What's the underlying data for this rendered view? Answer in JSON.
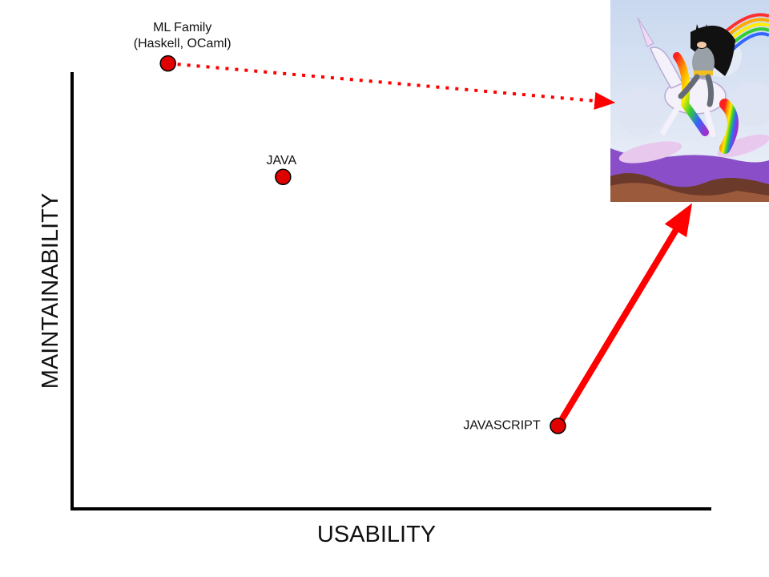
{
  "chart_data": {
    "type": "scatter",
    "title": "",
    "xlabel": "USABILITY",
    "ylabel": "MAINTAINABILITY",
    "xlim": [
      0,
      100
    ],
    "ylim": [
      0,
      100
    ],
    "grid": false,
    "legend": "none",
    "points": [
      {
        "label_lines": [
          "ML Family",
          "(Haskell, OCaml)"
        ],
        "x": 15,
        "y": 102
      },
      {
        "label_lines": [
          "JAVA"
        ],
        "x": 33,
        "y": 76
      },
      {
        "label_lines": [
          "JAVASCRIPT"
        ],
        "x": 76,
        "y": 19
      }
    ],
    "arrows": [
      {
        "from": 0,
        "style": "dotted",
        "target": "picture",
        "to": [
          85,
          93
        ]
      },
      {
        "from": 2,
        "style": "solid",
        "target": "picture",
        "to": [
          97,
          70
        ]
      }
    ],
    "picture": {
      "description_icon": "batman-riding-rainbow-unicorn-icon"
    }
  },
  "colors": {
    "marker": "#e00000",
    "arrow": "#ff0000",
    "axis": "#000000"
  }
}
